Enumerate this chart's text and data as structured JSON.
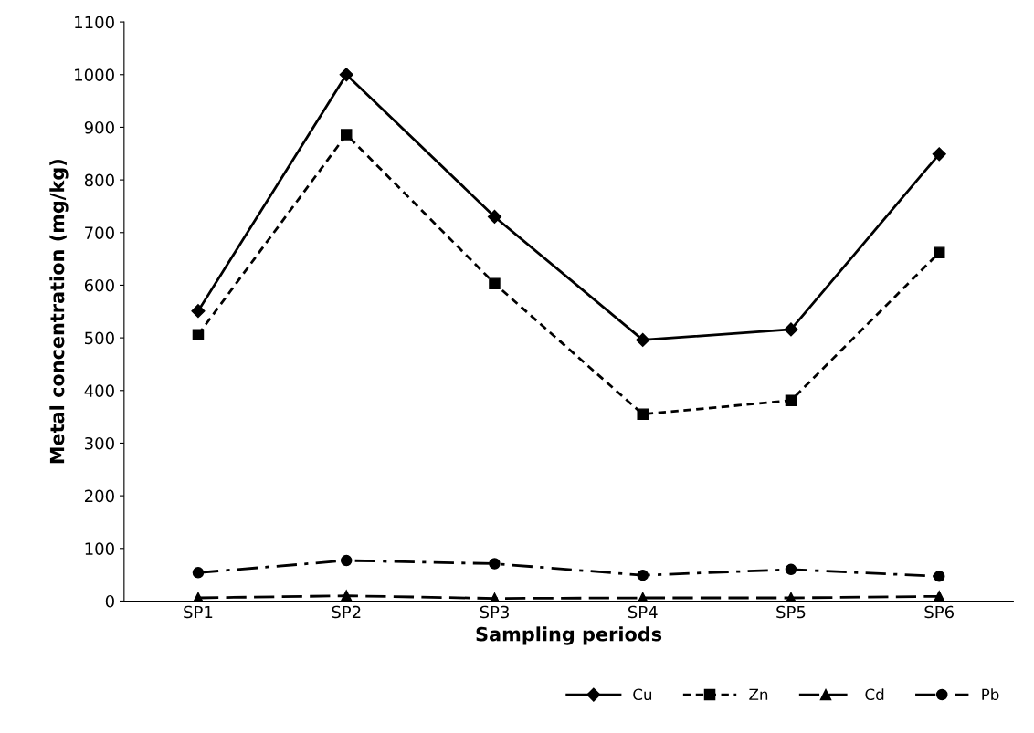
{
  "chart_data": {
    "type": "line",
    "xlabel": "Sampling periods",
    "ylabel": "Metal concentration (mg/kg)",
    "categories": [
      "SP1",
      "SP2",
      "SP3",
      "SP4",
      "SP5",
      "SP6"
    ],
    "ylim": [
      0,
      1100
    ],
    "yticks": [
      0,
      100,
      200,
      300,
      400,
      500,
      600,
      700,
      800,
      900,
      1000,
      1100
    ],
    "grid": false,
    "legend": "bottom right",
    "series": [
      {
        "name": "Cu",
        "color": "#000000",
        "marker": "diamond",
        "line_style": "solid",
        "values": [
          551,
          1000,
          730,
          496,
          516,
          849
        ]
      },
      {
        "name": "Zn",
        "color": "#000000",
        "marker": "square",
        "line_style": "dashed",
        "values": [
          506,
          886,
          603,
          355,
          381,
          662
        ]
      },
      {
        "name": "Cd",
        "color": "#000000",
        "marker": "triangle",
        "line_style": "longdash",
        "values": [
          6,
          10,
          5,
          6,
          6,
          9
        ]
      },
      {
        "name": "Pb",
        "color": "#000000",
        "marker": "circle",
        "line_style": "dashdot",
        "values": [
          54,
          77,
          71,
          49,
          60,
          47
        ]
      }
    ]
  }
}
